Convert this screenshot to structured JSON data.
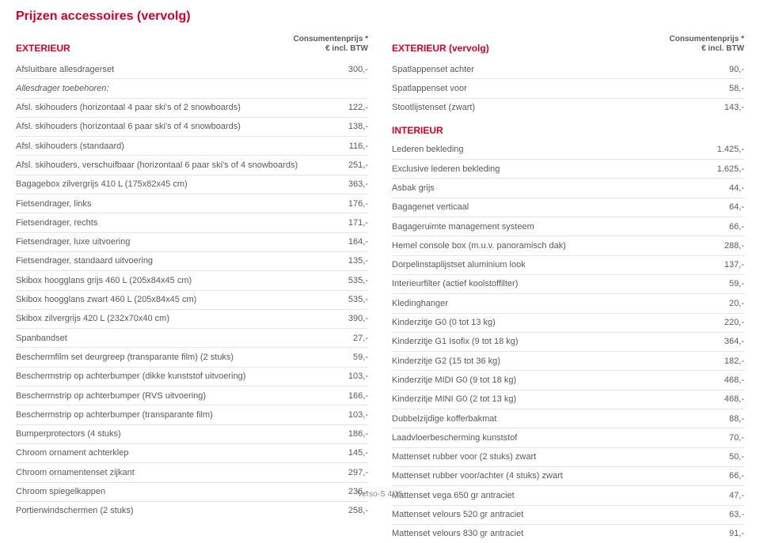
{
  "title": "Prijzen accessoires (vervolg)",
  "price_header": "Consumentenprijs *\n€ incl. BTW",
  "footer": "Verso-S 4/15",
  "colors": {
    "accent": "#d40028",
    "text": "#5a5a5a",
    "divider": "#e6e6e6",
    "background": "#ffffff"
  },
  "left": {
    "heading": "EXTERIEUR",
    "rows": [
      {
        "label": "Afsluitbare allesdragerset",
        "price": "300,-"
      },
      {
        "label": "Allesdrager toebehoren:",
        "price": "",
        "italic": true
      },
      {
        "label": "Afsl. skihouders (horizontaal 4 paar ski's of 2 snowboards)",
        "price": "122,-"
      },
      {
        "label": "Afsl. skihouders (horizontaal 6 paar ski's of 4 snowboards)",
        "price": "138,-"
      },
      {
        "label": "Afsl. skihouders (standaard)",
        "price": "116,-"
      },
      {
        "label": "Afsl. skihouders, verschuifbaar (horizontaal 6 paar ski's of 4 snowboards)",
        "price": "251,-"
      },
      {
        "label": "Bagagebox zilvergrijs 410 L (175x82x45 cm)",
        "price": "363,-"
      },
      {
        "label": "Fietsendrager, links",
        "price": "176,-"
      },
      {
        "label": "Fietsendrager, rechts",
        "price": "171,-"
      },
      {
        "label": "Fietsendrager, luxe uitvoering",
        "price": "164,-"
      },
      {
        "label": "Fietsendrager, standaard uitvoering",
        "price": "135,-"
      },
      {
        "label": "Skibox hoogglans grijs 460 L (205x84x45 cm)",
        "price": "535,-"
      },
      {
        "label": "Skibox hoogglans zwart 460 L (205x84x45 cm)",
        "price": "535,-"
      },
      {
        "label": "Skibox zilvergrijs 420 L (232x70x40 cm)",
        "price": "390,-"
      },
      {
        "label": "Spanbandset",
        "price": "27,-"
      },
      {
        "label": "Beschermfilm set deurgreep (transparante film) (2 stuks)",
        "price": "59,-"
      },
      {
        "label": "Beschermstrip op achterbumper (dikke kunststof uitvoering)",
        "price": "103,-"
      },
      {
        "label": "Beschermstrip op achterbumper (RVS uitvoering)",
        "price": "166,-"
      },
      {
        "label": "Beschermstrip op achterbumper (transparante film)",
        "price": "103,-"
      },
      {
        "label": "Bumperprotectors (4 stuks)",
        "price": "186,-"
      },
      {
        "label": "Chroom ornament achterklep",
        "price": "145,-"
      },
      {
        "label": "Chroom ornamentenset zijkant",
        "price": "297,-"
      },
      {
        "label": "Chroom spiegelkappen",
        "price": "236,-"
      },
      {
        "label": "Portierwindschermen (2 stuks)",
        "price": "258,-"
      }
    ]
  },
  "right": {
    "heading": "EXTERIEUR (vervolg)",
    "rows1": [
      {
        "label": "Spatlappenset achter",
        "price": "90,-"
      },
      {
        "label": "Spatlappenset voor",
        "price": "58,-"
      },
      {
        "label": "Stootlijstenset (zwart)",
        "price": "143,-"
      }
    ],
    "heading2": "INTERIEUR",
    "rows2": [
      {
        "label": "Lederen bekleding",
        "price": "1.425,-"
      },
      {
        "label": "Exclusive lederen bekleding",
        "price": "1.625,-"
      },
      {
        "label": "Asbak grijs",
        "price": "44,-"
      },
      {
        "label": "Bagagenet verticaal",
        "price": "64,-"
      },
      {
        "label": "Bagageruimte management systeem",
        "price": "66,-"
      },
      {
        "label": "Hemel console box (m.u.v. panoramisch dak)",
        "price": "288,-"
      },
      {
        "label": "Dorpelinstaplijstset aluminium look",
        "price": "137,-"
      },
      {
        "label": "Interieurfilter (actief koolstoffilter)",
        "price": "59,-"
      },
      {
        "label": "Kledinghanger",
        "price": "20,-"
      },
      {
        "label": "Kinderzitje G0 (0 tot 13 kg)",
        "price": "220,-"
      },
      {
        "label": "Kinderzitje G1 Isofix (9 tot 18 kg)",
        "price": "364,-"
      },
      {
        "label": "Kinderzitje G2 (15 tot 36 kg)",
        "price": "182,-"
      },
      {
        "label": "Kinderzitje MIDI G0  (9 tot 18 kg)",
        "price": "468,-"
      },
      {
        "label": "Kinderzitje MINI G0  (2 tot 13 kg)",
        "price": "468,-"
      },
      {
        "label": "Dubbelzijdige kofferbakmat",
        "price": "88,-"
      },
      {
        "label": "Laadvloerbescherming kunststof",
        "price": "70,-"
      },
      {
        "label": "Mattenset rubber voor (2 stuks) zwart",
        "price": "50,-"
      },
      {
        "label": "Mattenset rubber voor/achter (4 stuks) zwart",
        "price": "66,-"
      },
      {
        "label": "Mattenset vega 650 gr antraciet",
        "price": "47,-"
      },
      {
        "label": "Mattenset velours 520 gr antraciet",
        "price": "63,-"
      },
      {
        "label": "Mattenset velours 830 gr antraciet",
        "price": "91,-"
      }
    ]
  }
}
